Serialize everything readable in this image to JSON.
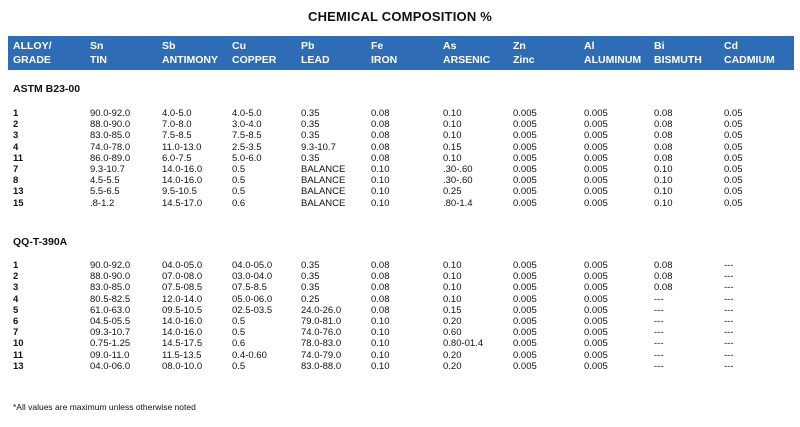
{
  "title": "CHEMICAL COMPOSITION %",
  "headers": [
    {
      "top": "ALLOY/",
      "bottom": "GRADE"
    },
    {
      "top": "Sn",
      "bottom": "TIN"
    },
    {
      "top": "Sb",
      "bottom": "ANTIMONY"
    },
    {
      "top": "Cu",
      "bottom": "COPPER"
    },
    {
      "top": "Pb",
      "bottom": "LEAD"
    },
    {
      "top": "Fe",
      "bottom": "IRON"
    },
    {
      "top": "As",
      "bottom": "ARSENIC"
    },
    {
      "top": "Zn",
      "bottom": "Zinc"
    },
    {
      "top": "Al",
      "bottom": "ALUMINUM"
    },
    {
      "top": "Bi",
      "bottom": "BISMUTH"
    },
    {
      "top": "Cd",
      "bottom": "CADMIUM"
    }
  ],
  "sections": [
    {
      "name": "ASTM B23-00",
      "rows": [
        [
          "1",
          "90.0-92.0",
          "4.0-5.0",
          "4.0-5.0",
          "0.35",
          "0.08",
          "0.10",
          "0.005",
          "0.005",
          "0.08",
          "0.05"
        ],
        [
          "2",
          "88.0-90.0",
          "7.0-8.0",
          "3.0-4.0",
          "0.35",
          "0.08",
          "0.10",
          "0.005",
          "0.005",
          "0.08",
          "0.05"
        ],
        [
          "3",
          "83.0-85.0",
          "7.5-8.5",
          "7.5-8.5",
          "0.35",
          "0.08",
          "0.10",
          "0.005",
          "0.005",
          "0.08",
          "0.05"
        ],
        [
          "4",
          "74.0-78.0",
          "11.0-13.0",
          "2.5-3.5",
          "9.3-10.7",
          "0.08",
          "0.15",
          "0.005",
          "0.005",
          "0.08",
          "0.05"
        ],
        [
          "11",
          "86.0-89.0",
          "6.0-7.5",
          "5.0-6.0",
          "0.35",
          "0.08",
          "0.10",
          "0.005",
          "0.005",
          "0.08",
          "0.05"
        ],
        [
          "7",
          "9.3-10.7",
          "14.0-16.0",
          "0.5",
          "BALANCE",
          "0.10",
          ".30-.60",
          "0.005",
          "0.005",
          "0.10",
          "0.05"
        ],
        [
          "8",
          "4.5-5.5",
          "14.0-16.0",
          "0.5",
          "BALANCE",
          "0.10",
          ".30-.60",
          "0.005",
          "0.005",
          "0.10",
          "0.05"
        ],
        [
          "13",
          "5.5-6.5",
          "9.5-10.5",
          "0.5",
          "BALANCE",
          "0.10",
          "0.25",
          "0.005",
          "0.005",
          "0.10",
          "0.05"
        ],
        [
          "15",
          ".8-1.2",
          "14.5-17.0",
          "0.6",
          "BALANCE",
          "0.10",
          ".80-1.4",
          "0.005",
          "0.005",
          "0.10",
          "0.05"
        ]
      ]
    },
    {
      "name": "QQ-T-390A",
      "rows": [
        [
          "1",
          "90.0-92.0",
          "04.0-05.0",
          "04.0-05.0",
          "0.35",
          "0.08",
          "0.10",
          "0.005",
          "0.005",
          "0.08",
          "---"
        ],
        [
          "2",
          "88.0-90.0",
          "07.0-08.0",
          "03.0-04.0",
          "0.35",
          "0.08",
          "0.10",
          "0.005",
          "0.005",
          "0.08",
          "---"
        ],
        [
          "3",
          "83.0-85.0",
          "07.5-08.5",
          "07.5-8.5",
          "0.35",
          "0.08",
          "0.10",
          "0.005",
          "0.005",
          "0.08",
          "---"
        ],
        [
          "4",
          "80.5-82.5",
          "12.0-14.0",
          "05.0-06.0",
          "0.25",
          "0.08",
          "0.10",
          "0.005",
          "0.005",
          "---",
          "---"
        ],
        [
          "5",
          "61.0-63.0",
          "09.5-10.5",
          "02.5-03.5",
          "24.0-26.0",
          "0.08",
          "0.15",
          "0.005",
          "0.005",
          "---",
          "---"
        ],
        [
          "6",
          "04.5-05.5",
          "14.0-16.0",
          "0.5",
          "79.0-81.0",
          "0.10",
          "0.20",
          "0.005",
          "0.005",
          "---",
          "---"
        ],
        [
          "7",
          "09.3-10.7",
          "14.0-16.0",
          "0.5",
          "74.0-76.0",
          "0.10",
          "0.60",
          "0.005",
          "0.005",
          "---",
          "---"
        ],
        [
          "10",
          "0.75-1.25",
          "14.5-17.5",
          "0.6",
          "78.0-83.0",
          "0.10",
          "0.80-01.4",
          "0.005",
          "0.005",
          "---",
          "---"
        ],
        [
          "11",
          "09.0-11.0",
          "11.5-13.5",
          "0.4-0.60",
          "74.0-79.0",
          "0.10",
          "0.20",
          "0.005",
          "0.005",
          "---",
          "---"
        ],
        [
          "13",
          "04.0-06.0",
          "08.0-10.0",
          "0.5",
          "83.0-88.0",
          "0.10",
          "0.20",
          "0.005",
          "0.005",
          "---",
          "---"
        ]
      ]
    }
  ],
  "footnote": "*All values are maximum unless otherwise noted",
  "colors": {
    "header_bg": "#2e6cb5",
    "header_text": "#ffffff"
  }
}
